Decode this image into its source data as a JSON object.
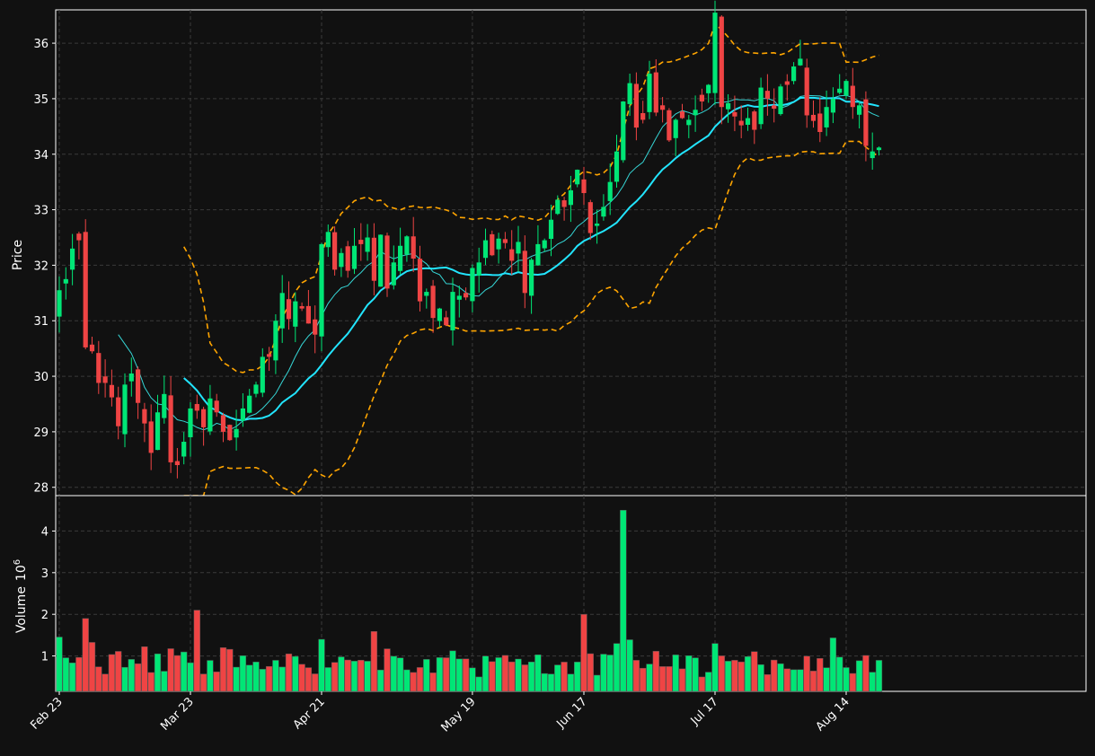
{
  "chart_data": {
    "type": "candlestick",
    "price_panel": {
      "ylabel": "Price",
      "ylim": [
        27.85,
        36.6
      ],
      "yticks": [
        28,
        29,
        30,
        31,
        32,
        33,
        34,
        35,
        36
      ],
      "grid": true
    },
    "volume_panel": {
      "ylabel": "Volume",
      "scale_label": "10",
      "scale_exponent": "6",
      "ylim": [
        0.15,
        4.85
      ],
      "yticks": [
        1,
        2,
        3,
        4
      ],
      "grid": true
    },
    "x_ticks": [
      {
        "index": 0,
        "label": "Feb 23"
      },
      {
        "index": 20,
        "label": "Mar 23"
      },
      {
        "index": 40,
        "label": "Apr 21"
      },
      {
        "index": 63,
        "label": "May 19"
      },
      {
        "index": 80,
        "label": "Jun 17"
      },
      {
        "index": 100,
        "label": "Jul 17"
      },
      {
        "index": 120,
        "label": "Aug 14"
      }
    ],
    "close": [
      31.55,
      31.75,
      32.3,
      32.45,
      30.52,
      30.45,
      29.88,
      29.88,
      29.62,
      29.1,
      29.85,
      30.05,
      29.52,
      29.15,
      28.62,
      29.35,
      29.68,
      28.45,
      28.4,
      28.82,
      29.42,
      29.38,
      29.08,
      29.6,
      29.35,
      29.0,
      28.85,
      29.05,
      29.42,
      29.65,
      29.85,
      30.35,
      30.35,
      31.0,
      31.5,
      31.03,
      31.35,
      31.22,
      30.95,
      30.75,
      32.38,
      32.6,
      31.92,
      32.22,
      31.9,
      32.35,
      32.38,
      32.5,
      31.72,
      32.55,
      31.58,
      32.05,
      32.35,
      32.52,
      32.12,
      31.35,
      31.52,
      31.05,
      31.22,
      30.92,
      31.52,
      31.45,
      31.42,
      31.95,
      32.05,
      32.45,
      32.18,
      32.48,
      32.4,
      32.08,
      32.42,
      31.5,
      32.1,
      32.38,
      32.45,
      32.82,
      33.18,
      33.05,
      33.35,
      33.72,
      33.3,
      32.58,
      32.75,
      33.05,
      33.5,
      34.05,
      34.95,
      35.28,
      34.48,
      34.62,
      35.45,
      34.75,
      34.8,
      34.25,
      34.62,
      34.65,
      34.62,
      34.8,
      34.95,
      35.25,
      36.55,
      34.85,
      34.92,
      34.68,
      34.52,
      34.65,
      34.44,
      35.2,
      35.0,
      34.82,
      35.22,
      35.25,
      35.58,
      35.72,
      34.7,
      34.6,
      34.4,
      34.85,
      35.0,
      35.18,
      35.32,
      34.85,
      34.88,
      34.15,
      34.05,
      34.12
    ]
  }
}
